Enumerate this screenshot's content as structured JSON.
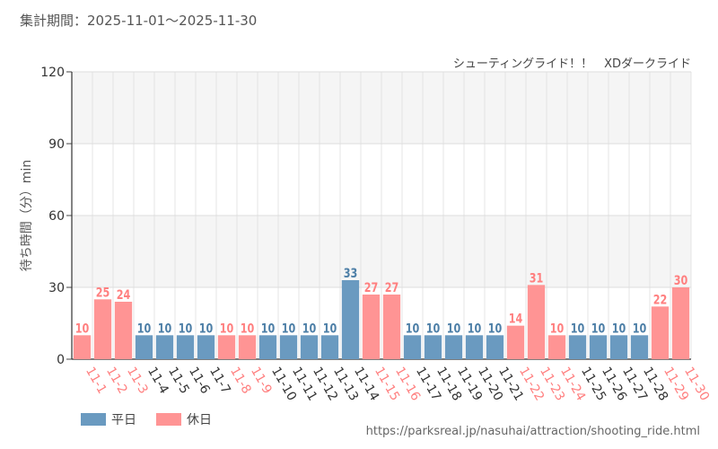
{
  "header": {
    "period": "集計期間：2025-11-01～2025-11-30"
  },
  "subtitle": "シューティングライド！！　XDダークライド",
  "source_url": "https://parksreal.jp/nasuhai/attraction/shooting_ride.html",
  "colors": {
    "weekday": "#6a9ac0",
    "holiday": "#ff9494",
    "weekday_text": "#4d7fa7",
    "holiday_text": "#ff7f7f"
  },
  "legend": [
    {
      "label": "平日",
      "color": "#6a9ac0"
    },
    {
      "label": "休日",
      "color": "#ff9494"
    }
  ],
  "chart_data": {
    "type": "bar",
    "ylabel": "待ち時間（分）min",
    "ylim": [
      0,
      120
    ],
    "yticks": [
      0,
      30,
      60,
      90,
      120
    ],
    "categories": [
      "11-1",
      "11-2",
      "11-3",
      "11-4",
      "11-5",
      "11-6",
      "11-7",
      "11-8",
      "11-9",
      "11-10",
      "11-11",
      "11-12",
      "11-13",
      "11-14",
      "11-15",
      "11-16",
      "11-17",
      "11-18",
      "11-19",
      "11-20",
      "11-21",
      "11-22",
      "11-23",
      "11-24",
      "11-25",
      "11-26",
      "11-27",
      "11-28",
      "11-29",
      "11-30"
    ],
    "values": [
      10,
      25,
      24,
      10,
      10,
      10,
      10,
      10,
      10,
      10,
      10,
      10,
      10,
      33,
      27,
      27,
      10,
      10,
      10,
      10,
      10,
      14,
      31,
      10,
      10,
      10,
      10,
      10,
      22,
      30
    ],
    "day_type": [
      "holiday",
      "holiday",
      "holiday",
      "weekday",
      "weekday",
      "weekday",
      "weekday",
      "holiday",
      "holiday",
      "weekday",
      "weekday",
      "weekday",
      "weekday",
      "weekday",
      "holiday",
      "holiday",
      "weekday",
      "weekday",
      "weekday",
      "weekday",
      "weekday",
      "holiday",
      "holiday",
      "holiday",
      "weekday",
      "weekday",
      "weekday",
      "weekday",
      "holiday",
      "holiday"
    ],
    "grid": true,
    "legend_position": "bottom-left"
  }
}
